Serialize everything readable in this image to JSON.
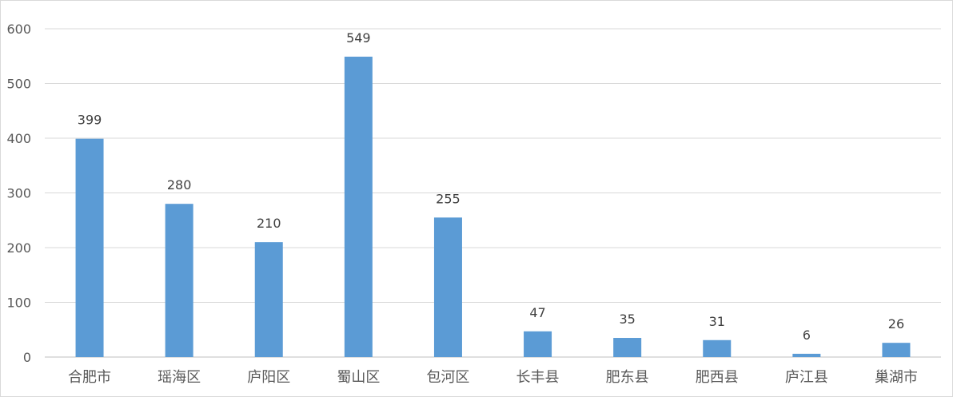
{
  "chart_data": {
    "type": "bar",
    "categories": [
      "合肥市",
      "瑶海区",
      "庐阳区",
      "蜀山区",
      "包河区",
      "长丰县",
      "肥东县",
      "肥西县",
      "庐江县",
      "巢湖市"
    ],
    "values": [
      399,
      280,
      210,
      549,
      255,
      47,
      35,
      31,
      6,
      26
    ],
    "data_labels": [
      "399",
      "280",
      "210",
      "549",
      "255",
      "47",
      "35",
      "31",
      "6",
      "26"
    ],
    "y_ticks": [
      "0",
      "100",
      "200",
      "300",
      "400",
      "500",
      "600"
    ],
    "ylim": [
      0,
      600
    ],
    "grid": true,
    "legend": "none",
    "bar_color": "#5b9bd5"
  }
}
